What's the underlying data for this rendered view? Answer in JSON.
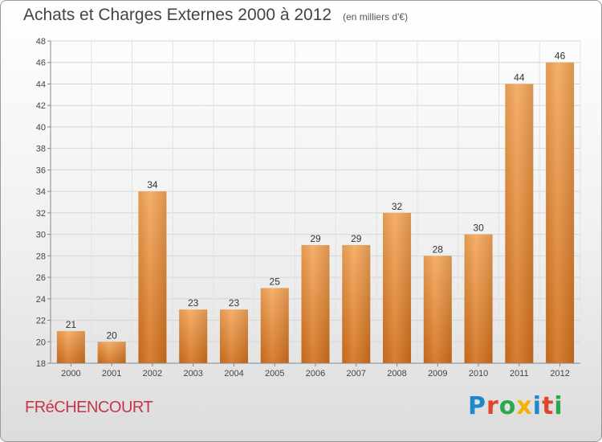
{
  "title": "Achats et Charges Externes 2000 à 2012",
  "unit_note": "(en milliers d'€)",
  "town": "FRéCHENCOURT",
  "brand": "Proxiti",
  "brand_colors": [
    "#1e88c8",
    "#e0462c",
    "#2aa84a",
    "#f0b400",
    "#1e88c8",
    "#e0462c",
    "#2aa84a"
  ],
  "chart_data": {
    "type": "bar",
    "categories": [
      "2000",
      "2001",
      "2002",
      "2003",
      "2004",
      "2005",
      "2006",
      "2007",
      "2008",
      "2009",
      "2010",
      "2011",
      "2012"
    ],
    "values": [
      21,
      20,
      34,
      23,
      23,
      25,
      29,
      29,
      32,
      28,
      30,
      44,
      46
    ],
    "ylim": [
      18,
      48
    ],
    "yticks": [
      18,
      20,
      22,
      24,
      26,
      28,
      30,
      32,
      34,
      36,
      38,
      40,
      42,
      44,
      46,
      48
    ],
    "grid": true,
    "bar_color_top": "#f5a75a",
    "bar_color_bottom": "#d2701c"
  }
}
